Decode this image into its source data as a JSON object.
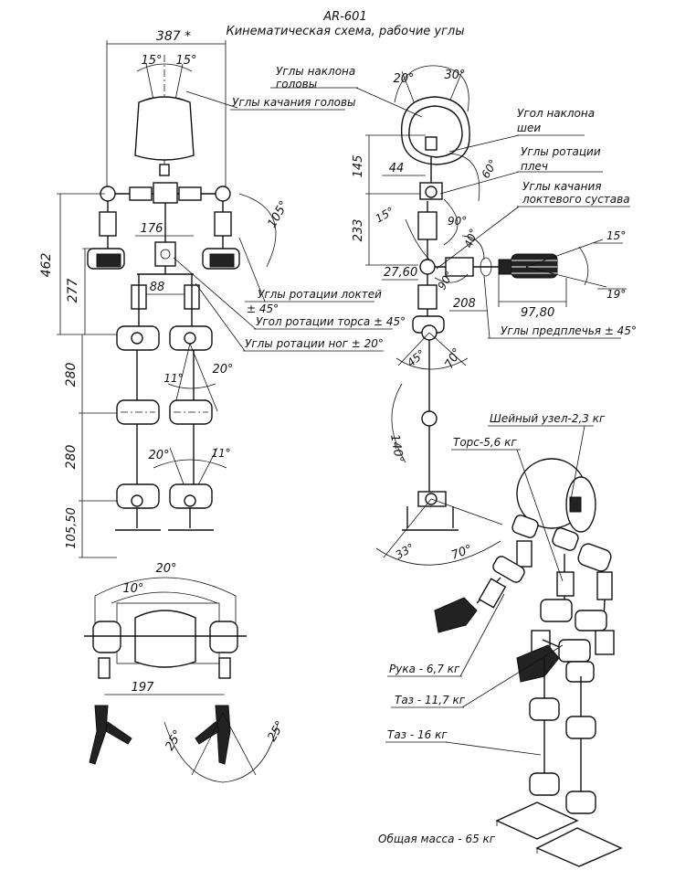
{
  "header": {
    "title": "AR-601",
    "subtitle": "Кинематическая схема, рабочие углы"
  },
  "front_view": {
    "width_dim": "387 *",
    "head_angle_left": "15°",
    "head_angle_right": "15°",
    "shoulder_height_dim": "462",
    "torso_height_dim": "277",
    "elbow_angle": "105°",
    "hip_width_dim": "176",
    "leg_gap_dim": "88",
    "thigh_dim": "280",
    "shin_dim": "280",
    "ankle_dim": "105,50",
    "knee_angle_left": "11°",
    "knee_angle_right": "20°",
    "ankle_angle_left": "20°",
    "ankle_angle_right": "11°"
  },
  "front_labels": {
    "head_swing": "Углы качания головы",
    "elbow_rotation_line1": "Углы ротации  локтей",
    "elbow_rotation_line2": "± 45°",
    "torso_rotation": "Угол ротации торса  ± 45°",
    "leg_rotation": "Углы ротации ног  ± 20°"
  },
  "side_view": {
    "head_tilt_back": "20°",
    "head_tilt_front": "30°",
    "neck_height_dim": "145",
    "neck_offset_dim": "44",
    "neck_angle": "60°",
    "upper_arm_dim": "233",
    "shoulder_angle_15": "15°",
    "shoulder_angle_90": "90°",
    "elbow_swing_angle": "40°",
    "elbow_angle_90": "90°",
    "hand_angle_top": "15°",
    "hand_angle_bottom": "19°",
    "forearm_offset_dim": "27,60",
    "forearm_len_dim": "208",
    "hand_len_dim": "97,80",
    "hip_angle_back": "45°",
    "hip_angle_front": "70°",
    "knee_angle": "140°",
    "ankle_angle_back": "33°",
    "ankle_angle_front": "70°"
  },
  "side_labels": {
    "head_tilt_line1": "Углы наклона",
    "head_tilt_line2": "головы",
    "neck_tilt_line1": "Угол наклона",
    "neck_tilt_line2": "шеи",
    "shoulder_rotation_line1": "Углы ротации",
    "shoulder_rotation_line2": "плеч",
    "elbow_swing_line1": "Углы качания",
    "elbow_swing_line2": "локтевого сустава",
    "forearm_angles": "Углы предплечья ± 45°"
  },
  "top_view": {
    "outer_angle": "20°",
    "inner_angle": "10°",
    "width_dim": "197",
    "foot_angle_left": "25°",
    "foot_angle_right": "25°"
  },
  "iso_labels": {
    "neck_mass": "Шейный узел-2,3 кг",
    "torso_mass": "Торс-5,6 кг",
    "arm_mass": "Рука - 6,7 кг",
    "pelvis_mass_1": "Таз - 11,7 кг",
    "pelvis_mass_2": "Таз - 16 кг",
    "total_mass": "Общая масса - 65 кг"
  }
}
